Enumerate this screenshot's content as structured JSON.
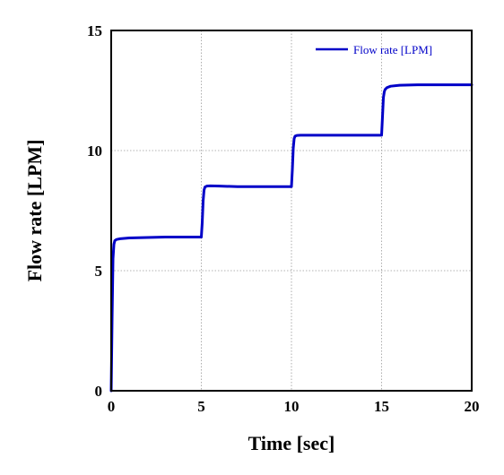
{
  "chart_data": {
    "type": "line",
    "title": "",
    "xlabel": "Time [sec]",
    "ylabel": "Flow rate [LPM]",
    "xlim": [
      0,
      20
    ],
    "ylim": [
      0,
      15
    ],
    "x_ticks": [
      "0",
      "5",
      "10",
      "15",
      "20"
    ],
    "y_ticks": [
      "0",
      "5",
      "10",
      "15"
    ],
    "grid": true,
    "legend_position": "top-right",
    "series": [
      {
        "name": "Flow rate [LPM]",
        "color": "#0000c8",
        "x": [
          0,
          0.05,
          0.1,
          0.15,
          0.2,
          0.3,
          0.5,
          1,
          2,
          3,
          4,
          5,
          5.05,
          5.1,
          5.15,
          5.2,
          5.3,
          5.5,
          6,
          7,
          8,
          9,
          10,
          10.05,
          10.1,
          10.15,
          10.2,
          10.3,
          10.5,
          11,
          12,
          13,
          14,
          15,
          15.05,
          15.1,
          15.15,
          15.2,
          15.3,
          15.5,
          16,
          17,
          18,
          19,
          20
        ],
        "y": [
          0,
          3.0,
          5.5,
          6.1,
          6.25,
          6.3,
          6.33,
          6.36,
          6.38,
          6.4,
          6.4,
          6.4,
          7.0,
          7.9,
          8.35,
          8.48,
          8.52,
          8.53,
          8.52,
          8.5,
          8.5,
          8.5,
          8.5,
          9.2,
          10.1,
          10.5,
          10.6,
          10.63,
          10.64,
          10.64,
          10.64,
          10.64,
          10.64,
          10.64,
          11.4,
          12.2,
          12.45,
          12.55,
          12.62,
          12.68,
          12.72,
          12.74,
          12.74,
          12.74,
          12.74
        ]
      }
    ]
  }
}
